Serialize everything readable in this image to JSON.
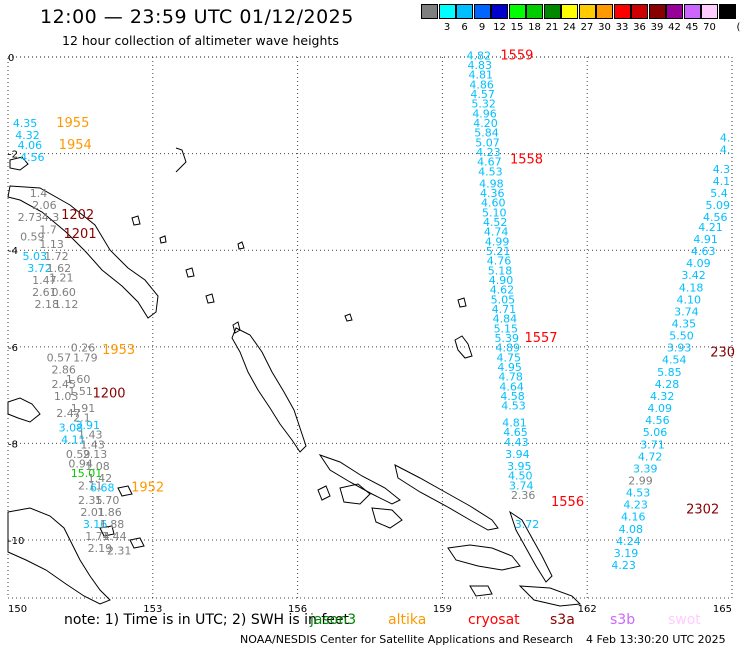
{
  "header": {
    "title": "12:00 — 23:59 UTC 01/12/2025",
    "subtitle": "12 hour collection of altimeter wave heights"
  },
  "color_scale": {
    "unit_label": "(ft)",
    "entries": [
      {
        "label": "",
        "color": "#7f7f7f"
      },
      {
        "label": "3",
        "color": "#00ffff"
      },
      {
        "label": "6",
        "color": "#00bfff"
      },
      {
        "label": "9",
        "color": "#0066ff"
      },
      {
        "label": "12",
        "color": "#0000cc"
      },
      {
        "label": "15",
        "color": "#00ff00"
      },
      {
        "label": "18",
        "color": "#00cc00"
      },
      {
        "label": "21",
        "color": "#008800"
      },
      {
        "label": "24",
        "color": "#ffff00"
      },
      {
        "label": "27",
        "color": "#ffcc00"
      },
      {
        "label": "30",
        "color": "#ff9900"
      },
      {
        "label": "33",
        "color": "#ff0000"
      },
      {
        "label": "36",
        "color": "#cc0000"
      },
      {
        "label": "39",
        "color": "#880000"
      },
      {
        "label": "42",
        "color": "#990099"
      },
      {
        "label": "45",
        "color": "#cc66ff"
      },
      {
        "label": "70",
        "color": "#ffccff"
      },
      {
        "label": "",
        "color": "#000000"
      }
    ]
  },
  "axes": {
    "x_ticks": [
      "150",
      "153",
      "156",
      "159",
      "162",
      "165"
    ],
    "y_ticks": [
      "0",
      "-2",
      "-4",
      "-6",
      "-8",
      "-10"
    ]
  },
  "time_labels": [
    {
      "text": "1955",
      "lon": 151.0,
      "lat": -1.45,
      "color": "#ff9900"
    },
    {
      "text": "1954",
      "lon": 151.05,
      "lat": -1.9,
      "color": "#ff9900"
    },
    {
      "text": "1202",
      "lon": 151.1,
      "lat": -3.35,
      "color": "#880000"
    },
    {
      "text": "1201",
      "lon": 151.15,
      "lat": -3.75,
      "color": "#880000"
    },
    {
      "text": "1953",
      "lon": 151.95,
      "lat": -6.15,
      "color": "#ff9900"
    },
    {
      "text": "1200",
      "lon": 151.75,
      "lat": -7.05,
      "color": "#880000"
    },
    {
      "text": "1952",
      "lon": 152.55,
      "lat": -9.0,
      "color": "#ff9900"
    },
    {
      "text": "1559",
      "lon": 160.2,
      "lat": -0.05,
      "color": "#ff0000"
    },
    {
      "text": "1558",
      "lon": 160.4,
      "lat": -2.2,
      "color": "#ff0000"
    },
    {
      "text": "1557",
      "lon": 160.7,
      "lat": -5.9,
      "color": "#ff0000"
    },
    {
      "text": "1556",
      "lon": 161.25,
      "lat": -9.3,
      "color": "#ff0000"
    },
    {
      "text": "2302",
      "lon": 164.05,
      "lat": -9.45,
      "color": "#880000"
    },
    {
      "text": "230",
      "lon": 164.55,
      "lat": -6.2,
      "color": "#880000"
    }
  ],
  "wave_heights": [
    {
      "text": "4.35",
      "lon": 150.1,
      "lat": -1.45,
      "color": "#00bfff"
    },
    {
      "text": "4.32",
      "lon": 150.15,
      "lat": -1.7,
      "color": "#00bfff"
    },
    {
      "text": "4.06",
      "lon": 150.2,
      "lat": -1.9,
      "color": "#00bfff"
    },
    {
      "text": "4.56",
      "lon": 150.25,
      "lat": -2.15,
      "color": "#00bfff"
    },
    {
      "text": "1.4",
      "lon": 150.45,
      "lat": -2.9,
      "color": "#7f7f7f"
    },
    {
      "text": "2.06",
      "lon": 150.5,
      "lat": -3.15,
      "color": "#7f7f7f"
    },
    {
      "text": "2.73",
      "lon": 150.2,
      "lat": -3.4,
      "color": "#7f7f7f"
    },
    {
      "text": "4.3",
      "lon": 150.7,
      "lat": -3.4,
      "color": "#7f7f7f"
    },
    {
      "text": "1.7",
      "lon": 150.65,
      "lat": -3.65,
      "color": "#7f7f7f"
    },
    {
      "text": "0.59",
      "lon": 150.25,
      "lat": -3.8,
      "color": "#7f7f7f"
    },
    {
      "text": "1.13",
      "lon": 150.65,
      "lat": -3.95,
      "color": "#7f7f7f"
    },
    {
      "text": "5.03",
      "lon": 150.3,
      "lat": -4.2,
      "color": "#00bfff"
    },
    {
      "text": "1.72",
      "lon": 150.75,
      "lat": -4.2,
      "color": "#7f7f7f"
    },
    {
      "text": "3.72",
      "lon": 150.4,
      "lat": -4.45,
      "color": "#00bfff"
    },
    {
      "text": "1.62",
      "lon": 150.8,
      "lat": -4.45,
      "color": "#7f7f7f"
    },
    {
      "text": "1.21",
      "lon": 150.85,
      "lat": -4.65,
      "color": "#7f7f7f"
    },
    {
      "text": "1.47",
      "lon": 150.5,
      "lat": -4.7,
      "color": "#7f7f7f"
    },
    {
      "text": "2.61",
      "lon": 150.5,
      "lat": -4.95,
      "color": "#7f7f7f"
    },
    {
      "text": "0.60",
      "lon": 150.9,
      "lat": -4.95,
      "color": "#7f7f7f"
    },
    {
      "text": "2.18",
      "lon": 150.55,
      "lat": -5.2,
      "color": "#7f7f7f"
    },
    {
      "text": "1.12",
      "lon": 150.95,
      "lat": -5.2,
      "color": "#7f7f7f"
    },
    {
      "text": "0.26",
      "lon": 151.3,
      "lat": -6.1,
      "color": "#7f7f7f"
    },
    {
      "text": "0.57",
      "lon": 150.8,
      "lat": -6.3,
      "color": "#7f7f7f"
    },
    {
      "text": "1.79",
      "lon": 151.35,
      "lat": -6.3,
      "color": "#7f7f7f"
    },
    {
      "text": "2.86",
      "lon": 150.9,
      "lat": -6.55,
      "color": "#7f7f7f"
    },
    {
      "text": "1.60",
      "lon": 151.2,
      "lat": -6.75,
      "color": "#7f7f7f"
    },
    {
      "text": "2.45",
      "lon": 150.9,
      "lat": -6.85,
      "color": "#7f7f7f"
    },
    {
      "text": "1.51",
      "lon": 151.25,
      "lat": -7.0,
      "color": "#7f7f7f"
    },
    {
      "text": "1.03",
      "lon": 150.95,
      "lat": -7.1,
      "color": "#7f7f7f"
    },
    {
      "text": "2.47",
      "lon": 151.0,
      "lat": -7.45,
      "color": "#7f7f7f"
    },
    {
      "text": "1.91",
      "lon": 151.3,
      "lat": -7.35,
      "color": "#7f7f7f"
    },
    {
      "text": "2.1",
      "lon": 151.35,
      "lat": -7.55,
      "color": "#7f7f7f"
    },
    {
      "text": "3.91",
      "lon": 151.4,
      "lat": -7.7,
      "color": "#00bfff"
    },
    {
      "text": "3.08",
      "lon": 151.05,
      "lat": -7.75,
      "color": "#00bfff"
    },
    {
      "text": "1.43",
      "lon": 151.45,
      "lat": -7.9,
      "color": "#7f7f7f"
    },
    {
      "text": "4.11",
      "lon": 151.1,
      "lat": -8.0,
      "color": "#00bfff"
    },
    {
      "text": "1.43",
      "lon": 151.5,
      "lat": -8.1,
      "color": "#7f7f7f"
    },
    {
      "text": "0.59",
      "lon": 151.2,
      "lat": -8.3,
      "color": "#7f7f7f"
    },
    {
      "text": "2.13",
      "lon": 151.55,
      "lat": -8.3,
      "color": "#7f7f7f"
    },
    {
      "text": "0.94",
      "lon": 151.25,
      "lat": -8.5,
      "color": "#7f7f7f"
    },
    {
      "text": "1.08",
      "lon": 151.6,
      "lat": -8.55,
      "color": "#7f7f7f"
    },
    {
      "text": "15.01",
      "lon": 151.3,
      "lat": -8.7,
      "color": "#00cc00"
    },
    {
      "text": "1.42",
      "lon": 151.65,
      "lat": -8.8,
      "color": "#7f7f7f"
    },
    {
      "text": "2.11",
      "lon": 151.45,
      "lat": -8.95,
      "color": "#7f7f7f"
    },
    {
      "text": "6.68",
      "lon": 151.7,
      "lat": -9.0,
      "color": "#00bfff"
    },
    {
      "text": "2.35",
      "lon": 151.45,
      "lat": -9.25,
      "color": "#7f7f7f"
    },
    {
      "text": "1.70",
      "lon": 151.8,
      "lat": -9.25,
      "color": "#7f7f7f"
    },
    {
      "text": "2.01",
      "lon": 151.5,
      "lat": -9.5,
      "color": "#7f7f7f"
    },
    {
      "text": "1.86",
      "lon": 151.85,
      "lat": -9.5,
      "color": "#7f7f7f"
    },
    {
      "text": "3.16",
      "lon": 151.55,
      "lat": -9.75,
      "color": "#00bfff"
    },
    {
      "text": "1.88",
      "lon": 151.9,
      "lat": -9.75,
      "color": "#7f7f7f"
    },
    {
      "text": "1.74",
      "lon": 151.6,
      "lat": -10.0,
      "color": "#7f7f7f"
    },
    {
      "text": "1.44",
      "lon": 151.95,
      "lat": -10.0,
      "color": "#7f7f7f"
    },
    {
      "text": "2.19",
      "lon": 151.65,
      "lat": -10.25,
      "color": "#7f7f7f"
    },
    {
      "text": "2.31",
      "lon": 152.05,
      "lat": -10.3,
      "color": "#7f7f7f"
    },
    {
      "text": "4.82",
      "lon": 159.5,
      "lat": -0.05,
      "color": "#00bfff"
    },
    {
      "text": "4.83",
      "lon": 159.52,
      "lat": -0.25,
      "color": "#00bfff"
    },
    {
      "text": "4.81",
      "lon": 159.54,
      "lat": -0.45,
      "color": "#00bfff"
    },
    {
      "text": "4.86",
      "lon": 159.56,
      "lat": -0.65,
      "color": "#00bfff"
    },
    {
      "text": "4.57",
      "lon": 159.58,
      "lat": -0.85,
      "color": "#00bfff"
    },
    {
      "text": "5.32",
      "lon": 159.6,
      "lat": -1.05,
      "color": "#00bfff"
    },
    {
      "text": "4.96",
      "lon": 159.62,
      "lat": -1.25,
      "color": "#00bfff"
    },
    {
      "text": "4.20",
      "lon": 159.64,
      "lat": -1.45,
      "color": "#00bfff"
    },
    {
      "text": "5.84",
      "lon": 159.66,
      "lat": -1.65,
      "color": "#00bfff"
    },
    {
      "text": "5.07",
      "lon": 159.68,
      "lat": -1.85,
      "color": "#00bfff"
    },
    {
      "text": "4.23",
      "lon": 159.7,
      "lat": -2.05,
      "color": "#00bfff"
    },
    {
      "text": "4.67",
      "lon": 159.72,
      "lat": -2.25,
      "color": "#00bfff"
    },
    {
      "text": "4.53",
      "lon": 159.74,
      "lat": -2.45,
      "color": "#00bfff"
    },
    {
      "text": "4.98",
      "lon": 159.76,
      "lat": -2.7,
      "color": "#00bfff"
    },
    {
      "text": "4.36",
      "lon": 159.78,
      "lat": -2.9,
      "color": "#00bfff"
    },
    {
      "text": "4.60",
      "lon": 159.8,
      "lat": -3.1,
      "color": "#00bfff"
    },
    {
      "text": "5.10",
      "lon": 159.82,
      "lat": -3.3,
      "color": "#00bfff"
    },
    {
      "text": "4.52",
      "lon": 159.84,
      "lat": -3.5,
      "color": "#00bfff"
    },
    {
      "text": "4.74",
      "lon": 159.86,
      "lat": -3.7,
      "color": "#00bfff"
    },
    {
      "text": "4.99",
      "lon": 159.88,
      "lat": -3.9,
      "color": "#00bfff"
    },
    {
      "text": "5.21",
      "lon": 159.9,
      "lat": -4.1,
      "color": "#00bfff"
    },
    {
      "text": "4.76",
      "lon": 159.92,
      "lat": -4.3,
      "color": "#00bfff"
    },
    {
      "text": "5.18",
      "lon": 159.94,
      "lat": -4.5,
      "color": "#00bfff"
    },
    {
      "text": "4.90",
      "lon": 159.96,
      "lat": -4.7,
      "color": "#00bfff"
    },
    {
      "text": "4.62",
      "lon": 159.98,
      "lat": -4.9,
      "color": "#00bfff"
    },
    {
      "text": "5.05",
      "lon": 160.0,
      "lat": -5.1,
      "color": "#00bfff"
    },
    {
      "text": "4.71",
      "lon": 160.02,
      "lat": -5.3,
      "color": "#00bfff"
    },
    {
      "text": "4.84",
      "lon": 160.04,
      "lat": -5.5,
      "color": "#00bfff"
    },
    {
      "text": "5.15",
      "lon": 160.06,
      "lat": -5.7,
      "color": "#00bfff"
    },
    {
      "text": "5.39",
      "lon": 160.08,
      "lat": -5.9,
      "color": "#00bfff"
    },
    {
      "text": "4.89",
      "lon": 160.1,
      "lat": -6.1,
      "color": "#00bfff"
    },
    {
      "text": "4.75",
      "lon": 160.12,
      "lat": -6.3,
      "color": "#00bfff"
    },
    {
      "text": "4.95",
      "lon": 160.14,
      "lat": -6.5,
      "color": "#00bfff"
    },
    {
      "text": "4.78",
      "lon": 160.16,
      "lat": -6.7,
      "color": "#00bfff"
    },
    {
      "text": "4.64",
      "lon": 160.18,
      "lat": -6.9,
      "color": "#00bfff"
    },
    {
      "text": "4.58",
      "lon": 160.2,
      "lat": -7.1,
      "color": "#00bfff"
    },
    {
      "text": "4.53",
      "lon": 160.22,
      "lat": -7.3,
      "color": "#00bfff"
    },
    {
      "text": "4.81",
      "lon": 160.24,
      "lat": -7.65,
      "color": "#00bfff"
    },
    {
      "text": "4.65",
      "lon": 160.26,
      "lat": -7.85,
      "color": "#00bfff"
    },
    {
      "text": "4.43",
      "lon": 160.28,
      "lat": -8.05,
      "color": "#00bfff"
    },
    {
      "text": "3.94",
      "lon": 160.3,
      "lat": -8.3,
      "color": "#00bfff"
    },
    {
      "text": "3.95",
      "lon": 160.34,
      "lat": -8.55,
      "color": "#00bfff"
    },
    {
      "text": "4.50",
      "lon": 160.36,
      "lat": -8.75,
      "color": "#00bfff"
    },
    {
      "text": "3.74",
      "lon": 160.38,
      "lat": -8.95,
      "color": "#00bfff"
    },
    {
      "text": "2.36",
      "lon": 160.42,
      "lat": -9.15,
      "color": "#7f7f7f"
    },
    {
      "text": "3.72",
      "lon": 160.5,
      "lat": -9.75,
      "color": "#00bfff"
    },
    {
      "text": "4.",
      "lon": 164.75,
      "lat": -1.75,
      "color": "#00bfff"
    },
    {
      "text": "4.",
      "lon": 164.75,
      "lat": -2.0,
      "color": "#00bfff"
    },
    {
      "text": "4.3",
      "lon": 164.6,
      "lat": -2.4,
      "color": "#00bfff"
    },
    {
      "text": "4.1",
      "lon": 164.6,
      "lat": -2.65,
      "color": "#00bfff"
    },
    {
      "text": "5.4",
      "lon": 164.55,
      "lat": -2.9,
      "color": "#00bfff"
    },
    {
      "text": "5.09",
      "lon": 164.45,
      "lat": -3.15,
      "color": "#00bfff"
    },
    {
      "text": "4.56",
      "lon": 164.4,
      "lat": -3.4,
      "color": "#00bfff"
    },
    {
      "text": "4.21",
      "lon": 164.3,
      "lat": -3.6,
      "color": "#00bfff"
    },
    {
      "text": "4.91",
      "lon": 164.2,
      "lat": -3.85,
      "color": "#00bfff"
    },
    {
      "text": "4.63",
      "lon": 164.15,
      "lat": -4.1,
      "color": "#00bfff"
    },
    {
      "text": "4.09",
      "lon": 164.05,
      "lat": -4.35,
      "color": "#00bfff"
    },
    {
      "text": "3.42",
      "lon": 163.95,
      "lat": -4.6,
      "color": "#00bfff"
    },
    {
      "text": "4.18",
      "lon": 163.9,
      "lat": -4.85,
      "color": "#00bfff"
    },
    {
      "text": "4.10",
      "lon": 163.85,
      "lat": -5.1,
      "color": "#00bfff"
    },
    {
      "text": "3.74",
      "lon": 163.8,
      "lat": -5.35,
      "color": "#00bfff"
    },
    {
      "text": "4.35",
      "lon": 163.75,
      "lat": -5.6,
      "color": "#00bfff"
    },
    {
      "text": "5.50",
      "lon": 163.7,
      "lat": -5.85,
      "color": "#00bfff"
    },
    {
      "text": "3.93",
      "lon": 163.65,
      "lat": -6.1,
      "color": "#00bfff"
    },
    {
      "text": "4.54",
      "lon": 163.55,
      "lat": -6.35,
      "color": "#00bfff"
    },
    {
      "text": "5.85",
      "lon": 163.45,
      "lat": -6.6,
      "color": "#00bfff"
    },
    {
      "text": "4.28",
      "lon": 163.4,
      "lat": -6.85,
      "color": "#00bfff"
    },
    {
      "text": "4.32",
      "lon": 163.3,
      "lat": -7.1,
      "color": "#00bfff"
    },
    {
      "text": "4.09",
      "lon": 163.25,
      "lat": -7.35,
      "color": "#00bfff"
    },
    {
      "text": "4.56",
      "lon": 163.2,
      "lat": -7.6,
      "color": "#00bfff"
    },
    {
      "text": "5.06",
      "lon": 163.15,
      "lat": -7.85,
      "color": "#00bfff"
    },
    {
      "text": "3.71",
      "lon": 163.1,
      "lat": -8.1,
      "color": "#00bfff"
    },
    {
      "text": "4.72",
      "lon": 163.05,
      "lat": -8.35,
      "color": "#00bfff"
    },
    {
      "text": "3.39",
      "lon": 162.95,
      "lat": -8.6,
      "color": "#00bfff"
    },
    {
      "text": "2.99",
      "lon": 162.85,
      "lat": -8.85,
      "color": "#7f7f7f"
    },
    {
      "text": "4.53",
      "lon": 162.8,
      "lat": -9.1,
      "color": "#00bfff"
    },
    {
      "text": "4.23",
      "lon": 162.75,
      "lat": -9.35,
      "color": "#00bfff"
    },
    {
      "text": "4.16",
      "lon": 162.7,
      "lat": -9.6,
      "color": "#00bfff"
    },
    {
      "text": "4.08",
      "lon": 162.65,
      "lat": -9.85,
      "color": "#00bfff"
    },
    {
      "text": "4.24",
      "lon": 162.6,
      "lat": -10.1,
      "color": "#00bfff"
    },
    {
      "text": "3.19",
      "lon": 162.55,
      "lat": -10.35,
      "color": "#00bfff"
    },
    {
      "text": "4.23",
      "lon": 162.5,
      "lat": -10.6,
      "color": "#00bfff"
    }
  ],
  "footer": {
    "note": "note: 1) Time is in UTC; 2) SWH is in feet",
    "satellites": [
      {
        "name": "jason3",
        "color": "#008800"
      },
      {
        "name": "altika",
        "color": "#ff9900"
      },
      {
        "name": "cryosat",
        "color": "#ff0000"
      },
      {
        "name": "s3a",
        "color": "#880000"
      },
      {
        "name": "s3b",
        "color": "#cc66ff"
      },
      {
        "name": "swot",
        "color": "#ffccff"
      }
    ],
    "credit": "NOAA/NESDIS Center for Satellite Applications and Research",
    "timestamp": "4 Feb 13:30:20 UTC 2025"
  }
}
